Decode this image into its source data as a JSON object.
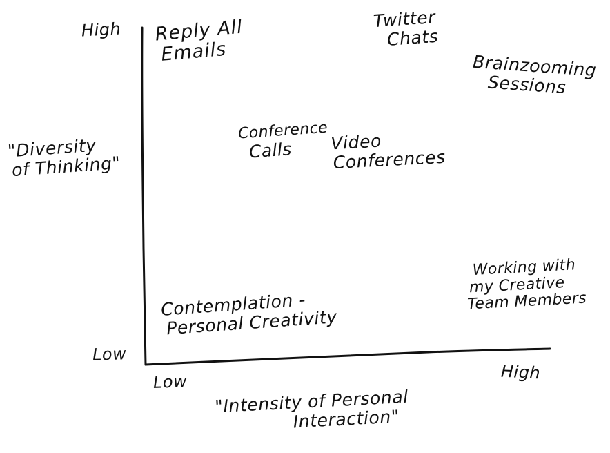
{
  "axes": {
    "y_label_lines": [
      "\"Diversity",
      "of Thinking\""
    ],
    "x_label_lines": [
      "\"Intensity of Personal",
      "Interaction\""
    ],
    "y_high": "High",
    "y_low": "Low",
    "x_low": "Low",
    "x_high": "High"
  },
  "items": {
    "reply_all_emails": [
      "Reply All",
      "Emails"
    ],
    "twitter_chats": [
      "Twitter",
      "Chats"
    ],
    "brainzooming_sessions": [
      "Brainzooming",
      "Sessions"
    ],
    "conference_calls": [
      "Conference",
      "Calls"
    ],
    "video_conferences": [
      "Video",
      "Conferences"
    ],
    "working_with_team": [
      "Working with",
      "my Creative",
      "Team Members"
    ],
    "contemplation": [
      "Contemplation -",
      "Personal Creativity"
    ]
  },
  "colors": {
    "ink": "#111111",
    "background": "#ffffff"
  }
}
